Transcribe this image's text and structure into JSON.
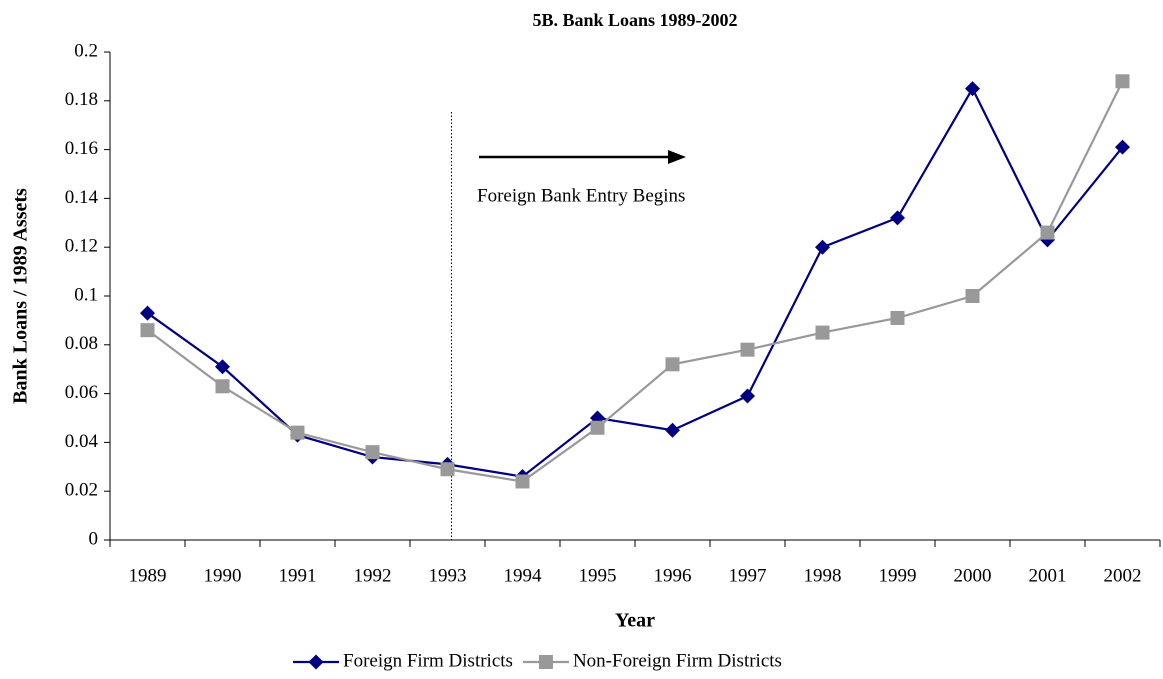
{
  "chart_data": {
    "type": "line",
    "title": "5B. Bank Loans 1989-2002",
    "xlabel": "Year",
    "ylabel": "Bank Loans / 1989 Assets",
    "categories": [
      "1989",
      "1990",
      "1991",
      "1992",
      "1993",
      "1994",
      "1995",
      "1996",
      "1997",
      "1998",
      "1999",
      "2000",
      "2001",
      "2002"
    ],
    "series": [
      {
        "name": "Foreign Firm Districts",
        "color": "#000080",
        "marker": "diamond",
        "values": [
          0.093,
          0.071,
          0.043,
          0.034,
          0.031,
          0.026,
          0.05,
          0.045,
          0.059,
          0.12,
          0.132,
          0.185,
          0.123,
          0.161
        ]
      },
      {
        "name": "Non-Foreign Firm Districts",
        "color": "#999999",
        "marker": "square",
        "values": [
          0.086,
          0.063,
          0.044,
          0.036,
          0.029,
          0.024,
          0.046,
          0.072,
          0.078,
          0.085,
          0.091,
          0.1,
          0.126,
          0.188
        ]
      }
    ],
    "ylim": [
      0,
      0.2
    ],
    "yticks": [
      0,
      0.02,
      0.04,
      0.06,
      0.08,
      0.1,
      0.12,
      0.14,
      0.16,
      0.18,
      0.2
    ],
    "annotation": "Foreign Bank Entry Begins",
    "vline_at": "1993",
    "legend": "bottom"
  }
}
